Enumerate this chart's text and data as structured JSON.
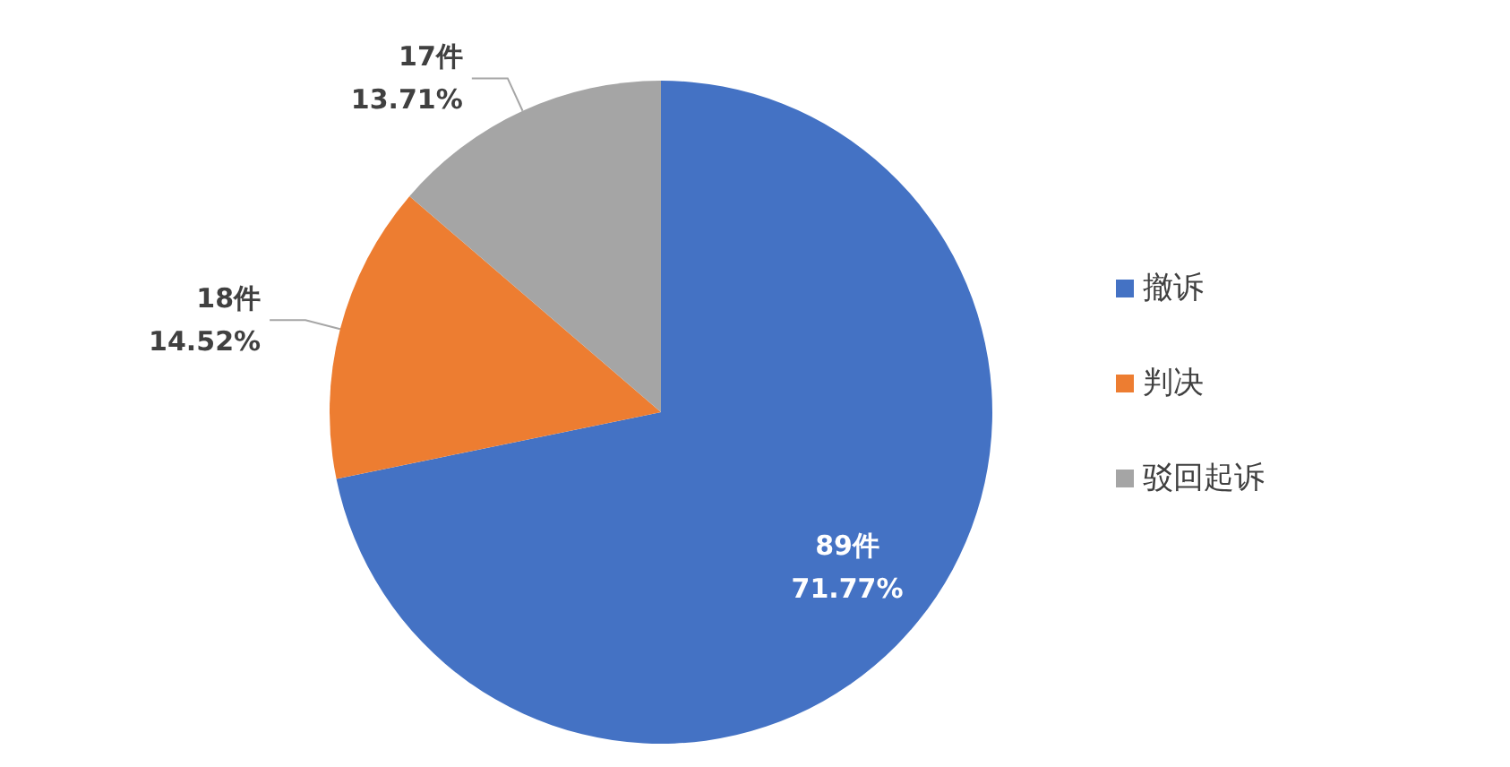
{
  "chart_data": {
    "type": "pie",
    "categories": [
      "撤诉",
      "判决",
      "驳回起诉"
    ],
    "values": [
      89,
      18,
      17
    ],
    "colors": [
      "#4472c4",
      "#ed7d31",
      "#a5a5a5"
    ],
    "value_labels": [
      "89件\n71.77%",
      "18件\n14.52%",
      "17件\n13.71%"
    ],
    "legend": "right"
  }
}
